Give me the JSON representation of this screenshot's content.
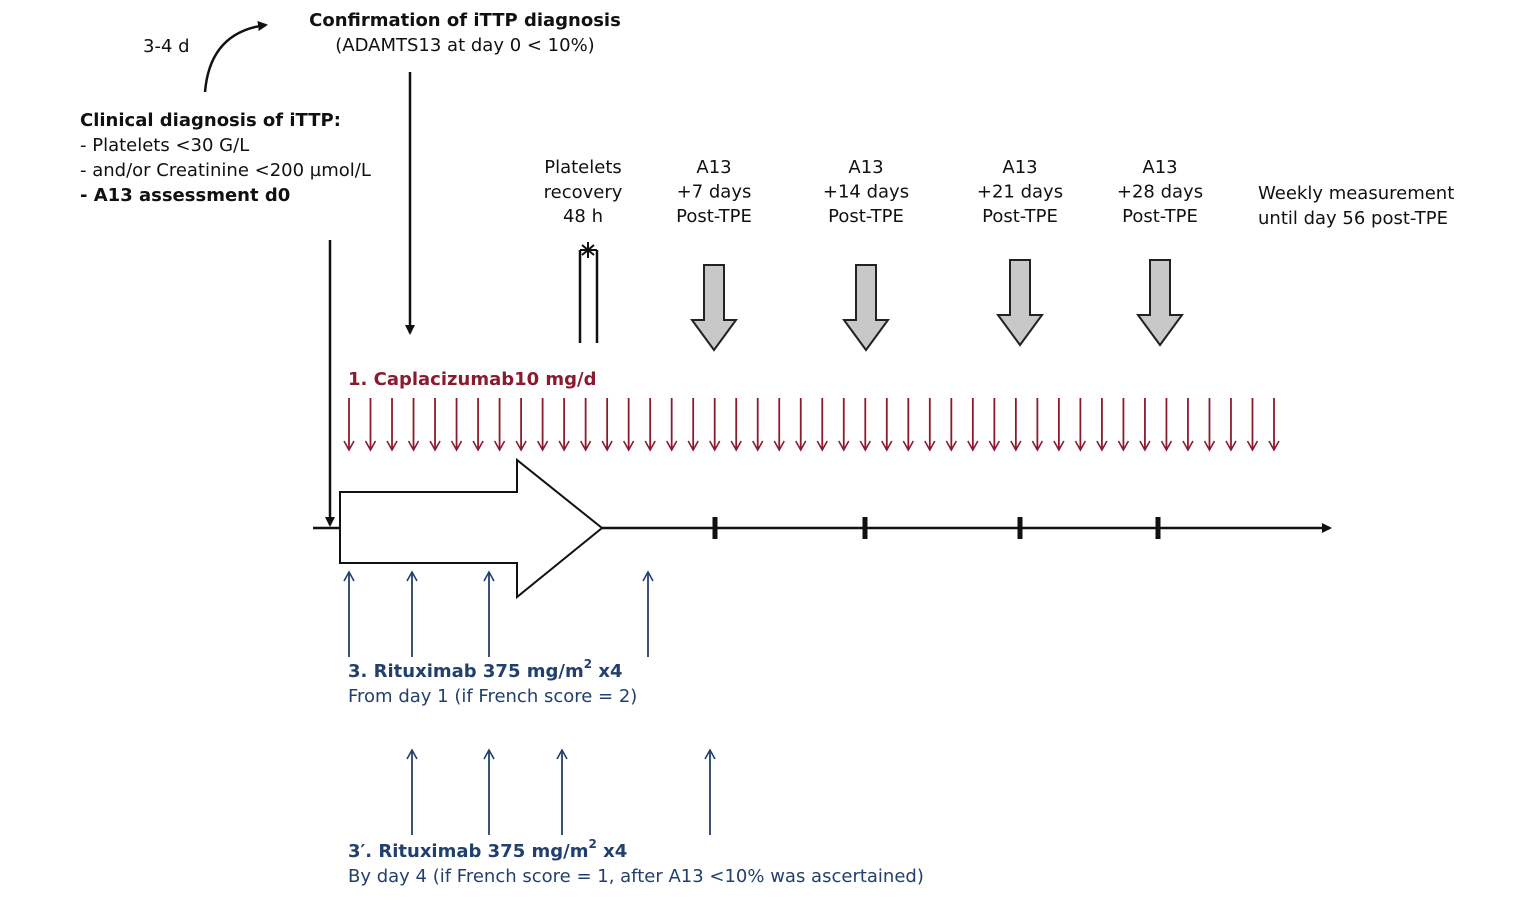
{
  "top_note": "3-4 d",
  "confirmation": {
    "title": "Confirmation of iTTP diagnosis",
    "detail": "(ADAMTS13 at day 0 < 10%)"
  },
  "clinical": {
    "title": "Clinical diagnosis of iTTP:",
    "items": [
      "- Platelets <30 G/L",
      "- and/or Creatinine <200 µmol/L",
      "- A13 assessment d0"
    ]
  },
  "platelets_recovery": [
    "Platelets",
    "recovery",
    "48 h"
  ],
  "a13_points": [
    {
      "lines": [
        "A13",
        "+7 days",
        "Post-TPE"
      ]
    },
    {
      "lines": [
        "A13",
        "+14 days",
        "Post-TPE"
      ]
    },
    {
      "lines": [
        "A13",
        "+21 days",
        "Post-TPE"
      ]
    },
    {
      "lines": [
        "A13",
        "+28 days",
        "Post-TPE"
      ]
    }
  ],
  "weekly": [
    "Weekly measurement",
    "until day 56 post-TPE"
  ],
  "caplacizumab": "1. Caplacizumab10 mg/d",
  "rituximab": [
    {
      "label": {
        "text": "3. Rituximab 375 mg/m",
        "sup": "2",
        "suffix": " x4"
      },
      "note": "From day 1 (if French score = 2)"
    },
    {
      "label": {
        "text": "3′. Rituximab 375 mg/m",
        "sup": "2",
        "suffix": " x4"
      },
      "note": "By day 4 (if French score = 1, after A13 <10% was ascertained)"
    }
  ]
}
